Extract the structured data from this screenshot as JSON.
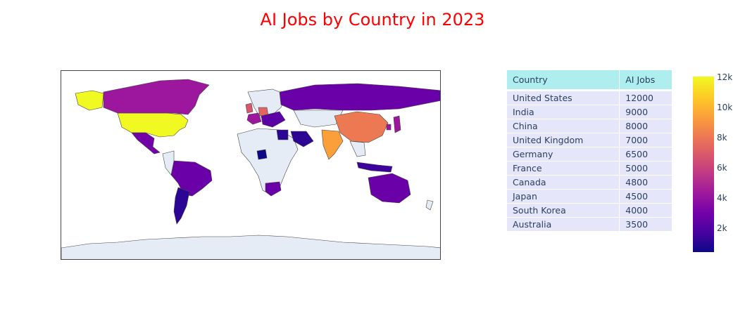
{
  "title": "AI Jobs by Country in 2023",
  "table": {
    "headers": [
      "Country",
      "AI Jobs"
    ],
    "rows": [
      [
        "United States",
        "12000"
      ],
      [
        "India",
        "9000"
      ],
      [
        "China",
        "8000"
      ],
      [
        "United Kingdom",
        "7000"
      ],
      [
        "Germany",
        "6500"
      ],
      [
        "France",
        "5000"
      ],
      [
        "Canada",
        "4800"
      ],
      [
        "Japan",
        "4500"
      ],
      [
        "South Korea",
        "4000"
      ],
      [
        "Australia",
        "3500"
      ]
    ]
  },
  "colorbar": {
    "colorscale": "Plasma",
    "ticks": [
      "12k",
      "10k",
      "8k",
      "6k",
      "4k",
      "2k"
    ]
  },
  "colors": {
    "title": "#ff0000",
    "land": "#e5ecf6",
    "header": "#afeeee",
    "cell": "#e6e6fa"
  }
}
